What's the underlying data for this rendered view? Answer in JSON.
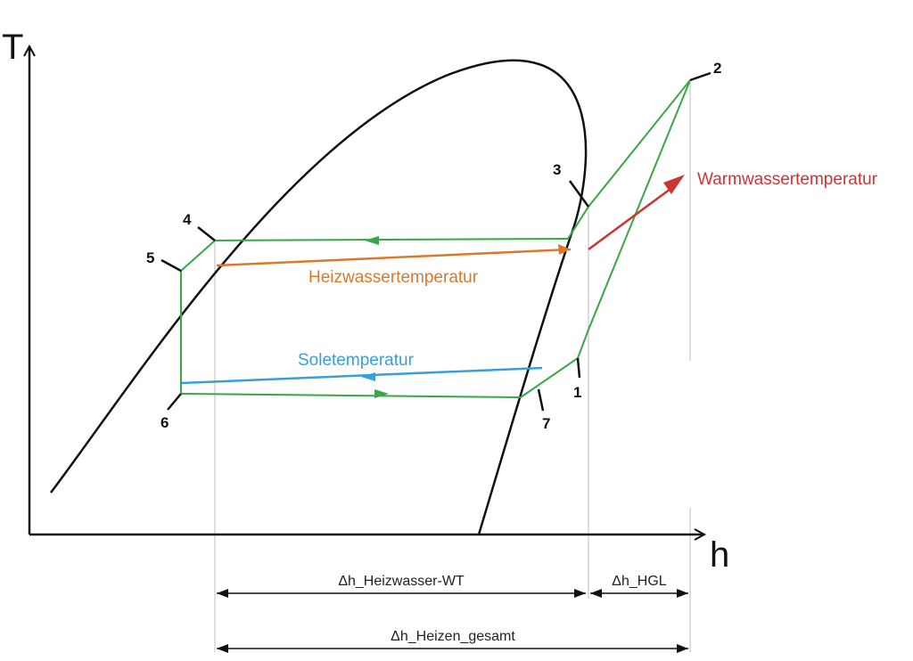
{
  "axes": {
    "y_label": "T",
    "x_label": "h"
  },
  "state_points": [
    "1",
    "2",
    "3",
    "4",
    "5",
    "6",
    "7"
  ],
  "streams": {
    "warmwater": {
      "label": "Warmwassertemperatur",
      "color": "#cc3333"
    },
    "heatingwater": {
      "label": "Heizwassertemperatur",
      "color": "#d97a2b"
    },
    "brine": {
      "label": "Soletemperatur",
      "color": "#3a9fd8"
    }
  },
  "cycle_color": "#3aa64a",
  "dimensions": {
    "heizwasser_wt": "Δh_Heizwasser-WT",
    "hgl": "Δh_HGL",
    "heizen_gesamt": "Δh_Heizen_gesamt"
  }
}
